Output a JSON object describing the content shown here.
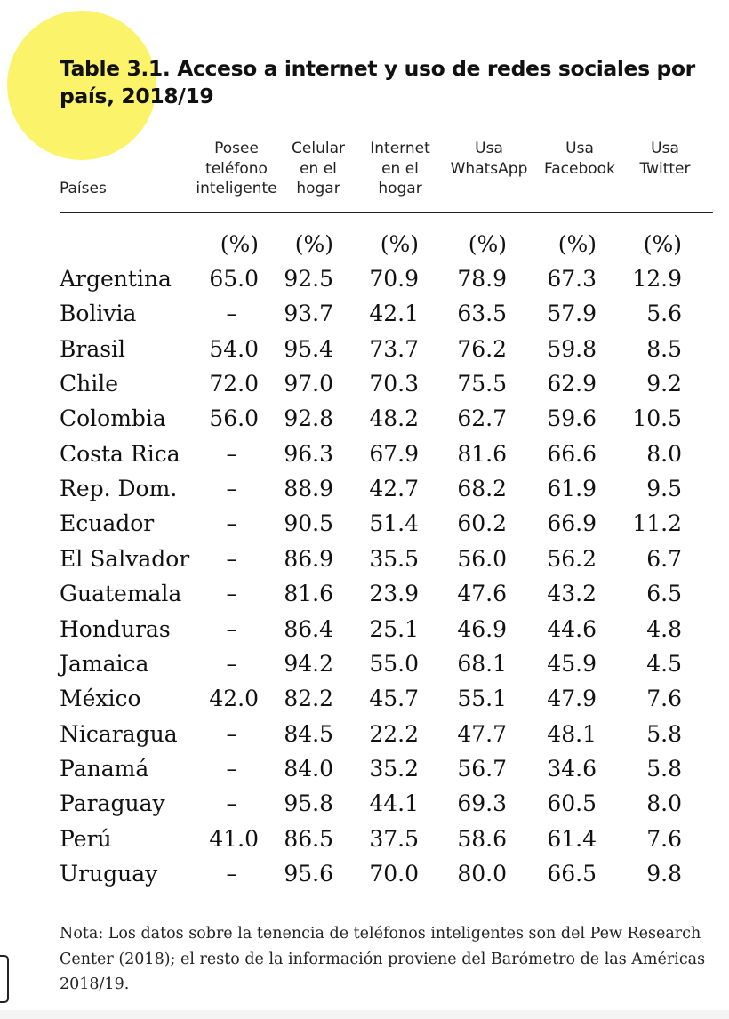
{
  "title": "Table 3.1. Acceso a internet y uso de redes sociales por país, 2018/19",
  "header_countries": "Países",
  "columns": [
    {
      "label": "Posee\nteléfono\ninteligente",
      "unit": "(%)"
    },
    {
      "label": "Celular\nen el\nhogar",
      "unit": "(%)"
    },
    {
      "label": "Internet\nen el\nhogar",
      "unit": "(%)"
    },
    {
      "label": "Usa\nWhatsApp",
      "unit": "(%)"
    },
    {
      "label": "Usa\nFacebook",
      "unit": "(%)"
    },
    {
      "label": "Usa\nTwitter",
      "unit": "(%)"
    }
  ],
  "rows": [
    {
      "country": "Argentina",
      "values": [
        "65.0",
        "92.5",
        "70.9",
        "78.9",
        "67.3",
        "12.9"
      ]
    },
    {
      "country": "Bolivia",
      "values": [
        "–",
        "93.7",
        "42.1",
        "63.5",
        "57.9",
        "5.6"
      ]
    },
    {
      "country": "Brasil",
      "values": [
        "54.0",
        "95.4",
        "73.7",
        "76.2",
        "59.8",
        "8.5"
      ]
    },
    {
      "country": "Chile",
      "values": [
        "72.0",
        "97.0",
        "70.3",
        "75.5",
        "62.9",
        "9.2"
      ]
    },
    {
      "country": "Colombia",
      "values": [
        "56.0",
        "92.8",
        "48.2",
        "62.7",
        "59.6",
        "10.5"
      ]
    },
    {
      "country": "Costa Rica",
      "values": [
        "–",
        "96.3",
        "67.9",
        "81.6",
        "66.6",
        "8.0"
      ]
    },
    {
      "country": "Rep. Dom.",
      "values": [
        "–",
        "88.9",
        "42.7",
        "68.2",
        "61.9",
        "9.5"
      ]
    },
    {
      "country": "Ecuador",
      "values": [
        "–",
        "90.5",
        "51.4",
        "60.2",
        "66.9",
        "11.2"
      ]
    },
    {
      "country": "El Salvador",
      "values": [
        "–",
        "86.9",
        "35.5",
        "56.0",
        "56.2",
        "6.7"
      ]
    },
    {
      "country": "Guatemala",
      "values": [
        "–",
        "81.6",
        "23.9",
        "47.6",
        "43.2",
        "6.5"
      ]
    },
    {
      "country": "Honduras",
      "values": [
        "–",
        "86.4",
        "25.1",
        "46.9",
        "44.6",
        "4.8"
      ]
    },
    {
      "country": "Jamaica",
      "values": [
        "–",
        "94.2",
        "55.0",
        "68.1",
        "45.9",
        "4.5"
      ]
    },
    {
      "country": "México",
      "values": [
        "42.0",
        "82.2",
        "45.7",
        "55.1",
        "47.9",
        "7.6"
      ]
    },
    {
      "country": "Nicaragua",
      "values": [
        "–",
        "84.5",
        "22.2",
        "47.7",
        "48.1",
        "5.8"
      ]
    },
    {
      "country": "Panamá",
      "values": [
        "–",
        "84.0",
        "35.2",
        "56.7",
        "34.6",
        "5.8"
      ]
    },
    {
      "country": "Paraguay",
      "values": [
        "–",
        "95.8",
        "44.1",
        "69.3",
        "60.5",
        "8.0"
      ]
    },
    {
      "country": "Perú",
      "values": [
        "41.0",
        "86.5",
        "37.5",
        "58.6",
        "61.4",
        "7.6"
      ]
    },
    {
      "country": "Uruguay",
      "values": [
        "–",
        "95.6",
        "70.0",
        "80.0",
        "66.5",
        "9.8"
      ]
    }
  ],
  "note": "Nota: Los datos sobre la tenencia de teléfonos inteligentes son del Pew Research Center (2018); el resto de la información proviene del Barómetro de las Américas 2018/19.",
  "colors": {
    "highlight": "#fbf36a",
    "text": "#111111"
  }
}
